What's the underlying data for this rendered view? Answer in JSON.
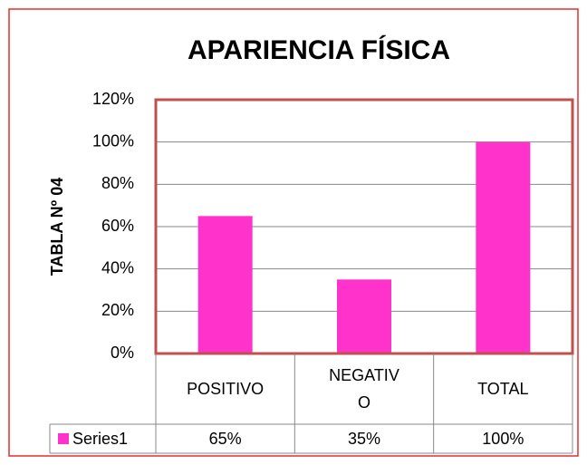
{
  "chart_data": {
    "type": "bar",
    "title": "APARIENCIA FÍSICA",
    "y_label": "TABLA Nº 04",
    "categories": [
      "POSITIVO",
      "NEGATIVO",
      "TOTAL"
    ],
    "series": [
      {
        "name": "Series1",
        "color": "#ff33cc",
        "values": [
          65,
          35,
          100
        ],
        "value_labels": [
          "65%",
          "35%",
          "100%"
        ]
      }
    ],
    "ylim": [
      0,
      120
    ],
    "yticks": [
      {
        "value": 0,
        "label": "0%"
      },
      {
        "value": 20,
        "label": "20%"
      },
      {
        "value": 40,
        "label": "40%"
      },
      {
        "value": 60,
        "label": "60%"
      },
      {
        "value": 80,
        "label": "80%"
      },
      {
        "value": 100,
        "label": "100%"
      },
      {
        "value": 120,
        "label": "120%"
      }
    ],
    "grid": true,
    "data_table": true
  }
}
